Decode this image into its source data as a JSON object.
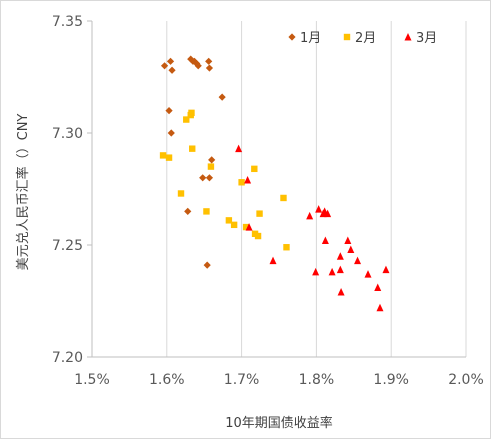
{
  "chart_data": {
    "type": "scatter",
    "title": "",
    "xlabel": "10年期国债收益率",
    "ylabel": "美元兑人民币汇率（）CNY",
    "xlim": [
      1.5,
      2.0
    ],
    "ylim": [
      7.2,
      7.35
    ],
    "x_ticks": [
      "1.5%",
      "1.6%",
      "1.7%",
      "1.8%",
      "1.9%",
      "2.0%"
    ],
    "y_ticks": [
      "7.20",
      "7.25",
      "7.30",
      "7.35"
    ],
    "grid": "vertical",
    "legend_position": "top-right",
    "series": [
      {
        "name": "1月",
        "color": "#c55a11",
        "marker": "diamond",
        "points": [
          [
            1.597,
            7.33
          ],
          [
            1.605,
            7.332
          ],
          [
            1.607,
            7.328
          ],
          [
            1.603,
            7.31
          ],
          [
            1.606,
            7.3
          ],
          [
            1.632,
            7.333
          ],
          [
            1.635,
            7.332
          ],
          [
            1.637,
            7.332
          ],
          [
            1.64,
            7.331
          ],
          [
            1.642,
            7.33
          ],
          [
            1.656,
            7.332
          ],
          [
            1.657,
            7.329
          ],
          [
            1.674,
            7.316
          ],
          [
            1.66,
            7.288
          ],
          [
            1.648,
            7.28
          ],
          [
            1.657,
            7.28
          ],
          [
            1.628,
            7.265
          ],
          [
            1.654,
            7.241
          ]
        ]
      },
      {
        "name": "2月",
        "color": "#ffc000",
        "marker": "square",
        "points": [
          [
            1.595,
            7.29
          ],
          [
            1.603,
            7.289
          ],
          [
            1.626,
            7.306
          ],
          [
            1.632,
            7.308
          ],
          [
            1.633,
            7.309
          ],
          [
            1.634,
            7.293
          ],
          [
            1.659,
            7.285
          ],
          [
            1.619,
            7.273
          ],
          [
            1.653,
            7.265
          ],
          [
            1.683,
            7.261
          ],
          [
            1.69,
            7.259
          ],
          [
            1.7,
            7.278
          ],
          [
            1.706,
            7.258
          ],
          [
            1.717,
            7.284
          ],
          [
            1.718,
            7.255
          ],
          [
            1.722,
            7.254
          ],
          [
            1.724,
            7.264
          ],
          [
            1.756,
            7.271
          ],
          [
            1.76,
            7.249
          ]
        ]
      },
      {
        "name": "3月",
        "color": "#ff0000",
        "marker": "triangle",
        "points": [
          [
            1.696,
            7.293
          ],
          [
            1.708,
            7.279
          ],
          [
            1.71,
            7.258
          ],
          [
            1.742,
            7.243
          ],
          [
            1.791,
            7.263
          ],
          [
            1.803,
            7.266
          ],
          [
            1.809,
            7.264
          ],
          [
            1.811,
            7.265
          ],
          [
            1.815,
            7.264
          ],
          [
            1.812,
            7.252
          ],
          [
            1.799,
            7.238
          ],
          [
            1.821,
            7.238
          ],
          [
            1.832,
            7.245
          ],
          [
            1.832,
            7.239
          ],
          [
            1.833,
            7.229
          ],
          [
            1.842,
            7.252
          ],
          [
            1.846,
            7.248
          ],
          [
            1.855,
            7.243
          ],
          [
            1.869,
            7.237
          ],
          [
            1.882,
            7.231
          ],
          [
            1.885,
            7.222
          ],
          [
            1.893,
            7.239
          ]
        ]
      }
    ]
  }
}
